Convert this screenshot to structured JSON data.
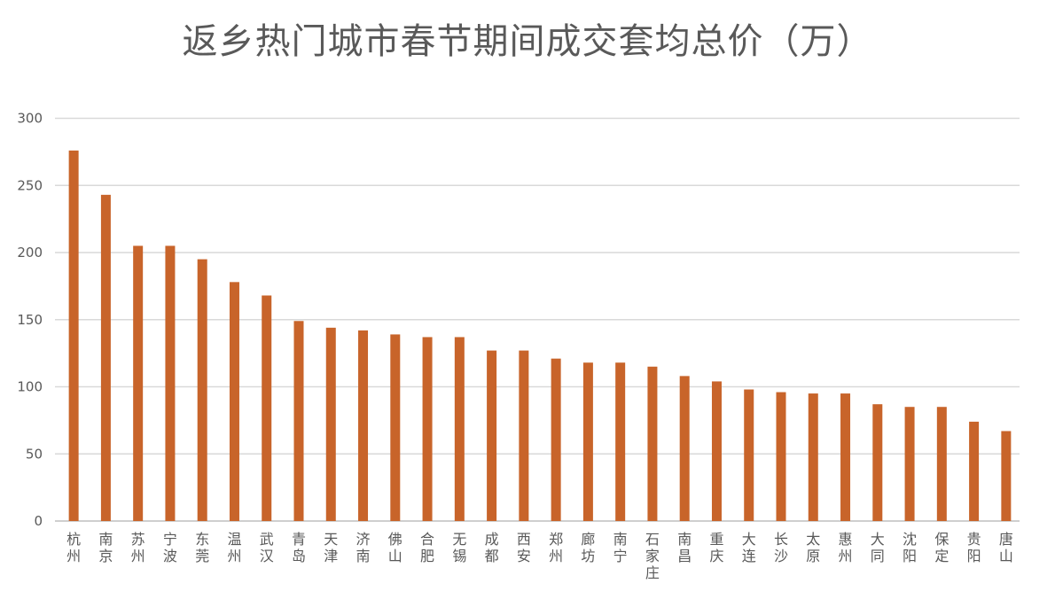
{
  "chart_data": {
    "type": "bar",
    "title": "返乡热门城市春节期间成交套均总价（万）",
    "xlabel": "",
    "ylabel": "",
    "ylim": [
      0,
      300
    ],
    "yticks": [
      0,
      50,
      100,
      150,
      200,
      250,
      300
    ],
    "grid": true,
    "bar_color": "#C8642A",
    "categories": [
      "杭州",
      "南京",
      "苏州",
      "宁波",
      "东莞",
      "温州",
      "武汉",
      "青岛",
      "天津",
      "济南",
      "佛山",
      "合肥",
      "无锡",
      "成都",
      "西安",
      "郑州",
      "廊坊",
      "南宁",
      "石家庄",
      "南昌",
      "重庆",
      "大连",
      "长沙",
      "太原",
      "惠州",
      "大同",
      "沈阳",
      "保定",
      "贵阳",
      "唐山"
    ],
    "values": [
      276,
      243,
      205,
      205,
      195,
      178,
      168,
      149,
      144,
      142,
      139,
      137,
      137,
      127,
      127,
      121,
      118,
      118,
      115,
      108,
      104,
      98,
      96,
      95,
      95,
      87,
      85,
      85,
      74,
      67
    ]
  }
}
